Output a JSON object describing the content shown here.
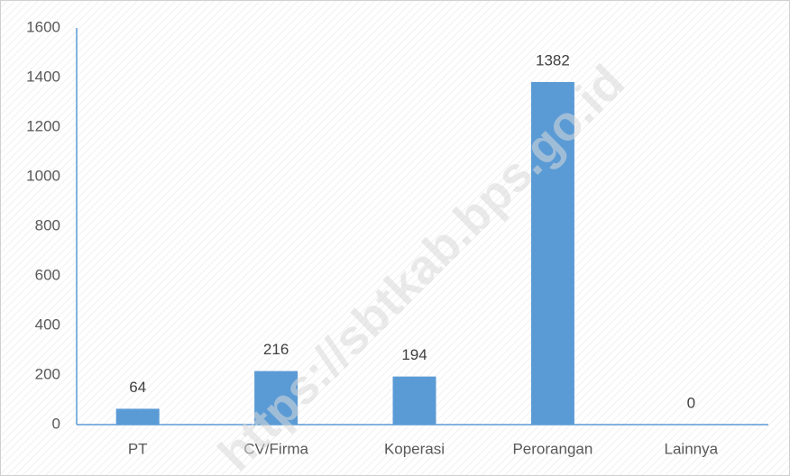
{
  "chart_data": {
    "type": "bar",
    "categories": [
      "PT",
      "CV/Firma",
      "Koperasi",
      "Perorangan",
      "Lainnya"
    ],
    "values": [
      64,
      216,
      194,
      1382,
      0
    ],
    "color": "#5b9bd5",
    "ylim": [
      0,
      1600
    ],
    "yticks": [
      0,
      200,
      400,
      600,
      800,
      1000,
      1200,
      1400,
      1600
    ],
    "grid": false,
    "watermark": "https://sbtkab.bps.go.id"
  }
}
